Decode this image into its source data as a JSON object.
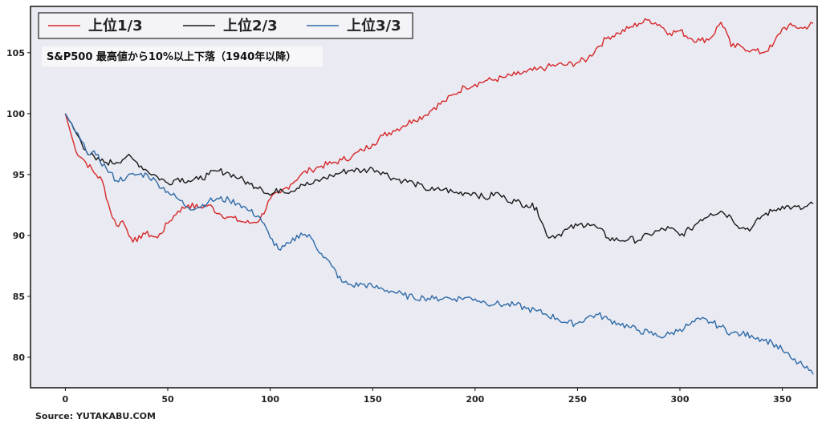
{
  "chart_data": {
    "type": "line",
    "annotation": "S&P500 最高値から10%以上下落（1940年以降）",
    "source": "Source: YUTAKABU.COM",
    "xlabel": "",
    "ylabel": "",
    "xlim": [
      -17,
      367
    ],
    "ylim": [
      77.5,
      108.8
    ],
    "xticks": [
      0,
      50,
      100,
      150,
      200,
      250,
      300,
      350
    ],
    "yticks": [
      80,
      85,
      90,
      95,
      100,
      105
    ],
    "legend_position": "top-left",
    "colors": {
      "plot_bg": "#eaeaf2",
      "series1": "#d62728",
      "series2": "#1a1a1a",
      "series3": "#2e6ba8"
    },
    "series": [
      {
        "name": "上位1/3",
        "color": "#d62728",
        "x": [
          0,
          5,
          10,
          15,
          18,
          22,
          25,
          28,
          30,
          32,
          35,
          38,
          42,
          45,
          50,
          55,
          60,
          65,
          70,
          75,
          80,
          85,
          90,
          95,
          100,
          105,
          110,
          115,
          120,
          125,
          130,
          135,
          140,
          145,
          150,
          155,
          160,
          165,
          170,
          175,
          180,
          185,
          190,
          195,
          200,
          205,
          210,
          215,
          220,
          225,
          230,
          235,
          240,
          245,
          250,
          255,
          260,
          265,
          270,
          275,
          280,
          285,
          290,
          295,
          300,
          305,
          310,
          315,
          320,
          322,
          325,
          330,
          335,
          340,
          345,
          350,
          355,
          360,
          365
        ],
        "y": [
          100,
          97,
          96,
          95,
          94.5,
          92,
          90.8,
          91.2,
          90.5,
          89.8,
          89.5,
          90.2,
          90.0,
          89.8,
          91.0,
          92.0,
          92.5,
          92.3,
          92.5,
          91.8,
          91.5,
          91.2,
          91.0,
          91.3,
          93.0,
          93.5,
          94.2,
          95.0,
          95.4,
          95.7,
          95.9,
          96.2,
          96.5,
          97.0,
          97.5,
          98.2,
          98.6,
          99.0,
          99.5,
          99.8,
          100.5,
          101.0,
          101.6,
          102.2,
          102.4,
          102.7,
          102.8,
          103.0,
          103.2,
          103.4,
          103.6,
          103.8,
          104.0,
          104.0,
          104.2,
          104.5,
          105.5,
          106.3,
          106.6,
          107.0,
          107.4,
          107.7,
          107.3,
          106.6,
          106.8,
          106.2,
          106.0,
          106.2,
          107.5,
          107.0,
          105.5,
          105.5,
          105.2,
          105.0,
          105.5,
          107.0,
          107.2,
          107.0,
          107.4
        ]
      },
      {
        "name": "上位2/3",
        "color": "#1a1a1a",
        "x": [
          0,
          5,
          10,
          15,
          20,
          25,
          30,
          35,
          40,
          45,
          50,
          55,
          60,
          65,
          70,
          75,
          80,
          85,
          90,
          95,
          100,
          105,
          110,
          115,
          120,
          125,
          130,
          135,
          140,
          145,
          150,
          155,
          160,
          165,
          170,
          175,
          180,
          185,
          190,
          195,
          200,
          205,
          210,
          215,
          220,
          225,
          230,
          235,
          240,
          245,
          250,
          255,
          260,
          265,
          270,
          275,
          280,
          285,
          290,
          295,
          300,
          305,
          310,
          315,
          320,
          325,
          330,
          335,
          340,
          345,
          350,
          355,
          360,
          365
        ],
        "y": [
          100,
          98.5,
          97.0,
          96.2,
          96.0,
          96.0,
          96.5,
          96.0,
          95.3,
          94.8,
          94.3,
          94.7,
          94.5,
          94.6,
          95.0,
          95.3,
          95.1,
          94.7,
          94.2,
          94.0,
          93.3,
          93.8,
          93.6,
          94.2,
          94.2,
          94.6,
          94.9,
          95.2,
          95.4,
          95.3,
          95.5,
          95.2,
          94.7,
          94.5,
          94.3,
          93.9,
          93.7,
          93.8,
          93.5,
          93.5,
          93.5,
          93.0,
          93.5,
          93.0,
          92.8,
          92.5,
          92.3,
          90.0,
          90.0,
          90.5,
          90.8,
          91.0,
          90.6,
          89.8,
          89.6,
          89.7,
          89.6,
          90.1,
          90.4,
          90.6,
          90.0,
          90.5,
          91.3,
          91.8,
          92.0,
          91.5,
          90.6,
          90.6,
          91.6,
          92.0,
          92.4,
          92.3,
          92.2,
          92.6
        ]
      },
      {
        "name": "上位3/3",
        "color": "#2e6ba8",
        "x": [
          0,
          5,
          10,
          15,
          20,
          25,
          30,
          35,
          40,
          45,
          50,
          55,
          60,
          65,
          70,
          75,
          80,
          85,
          90,
          95,
          100,
          105,
          110,
          115,
          120,
          125,
          130,
          135,
          140,
          145,
          150,
          155,
          160,
          165,
          170,
          175,
          180,
          185,
          190,
          195,
          200,
          205,
          210,
          215,
          220,
          225,
          230,
          235,
          240,
          245,
          250,
          255,
          260,
          265,
          270,
          275,
          280,
          285,
          290,
          295,
          300,
          305,
          310,
          315,
          320,
          325,
          330,
          335,
          340,
          345,
          350,
          355,
          360,
          365
        ],
        "y": [
          100,
          98.5,
          97.0,
          96.6,
          95.5,
          94.5,
          94.8,
          95.0,
          95.0,
          94.3,
          93.6,
          93.0,
          92.3,
          92.3,
          92.8,
          93.0,
          92.9,
          92.6,
          92.0,
          91.5,
          89.8,
          88.8,
          89.4,
          90.2,
          89.8,
          88.5,
          87.5,
          86.2,
          85.9,
          86.0,
          85.8,
          85.6,
          85.4,
          85.1,
          84.9,
          84.9,
          84.8,
          84.9,
          84.8,
          84.9,
          84.8,
          84.5,
          84.4,
          84.3,
          84.3,
          84.0,
          83.8,
          83.5,
          83.2,
          82.8,
          82.8,
          83.3,
          83.5,
          83.1,
          82.8,
          82.5,
          82.2,
          82.0,
          81.7,
          81.9,
          82.3,
          82.7,
          83.1,
          82.9,
          82.5,
          82.0,
          81.9,
          81.8,
          81.5,
          81.2,
          80.6,
          79.8,
          79.3,
          78.6
        ]
      }
    ]
  }
}
